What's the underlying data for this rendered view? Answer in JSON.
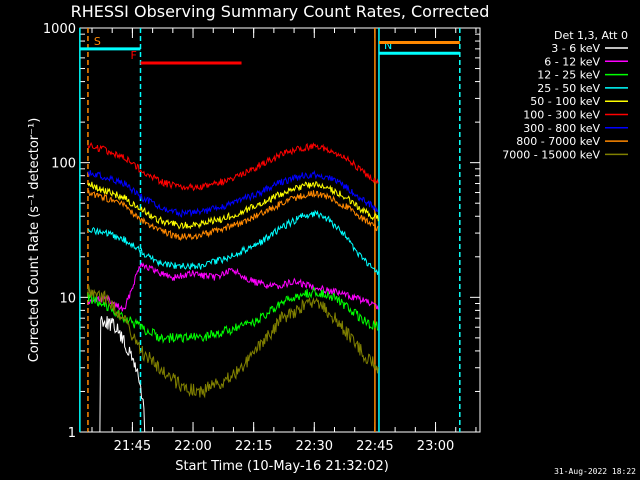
{
  "chart_data": {
    "type": "line",
    "title": "RHESSI Observing Summary Count Rates, Corrected",
    "xlabel": "Start Time (10-May-16 21:32:02)",
    "ylabel": "Corrected Count Rate (s⁻¹ detector⁻¹)",
    "x_ticks": [
      "21:45",
      "22:00",
      "22:15",
      "22:30",
      "22:45",
      "23:00"
    ],
    "y_ticks": [
      "1",
      "10",
      "100",
      "1000"
    ],
    "y_scale": "log",
    "ylim": [
      1,
      1000
    ],
    "xlim": [
      "21:32:02",
      "23:11:00"
    ],
    "legend_header": "Det 1,3, Att 0",
    "legend_position": "right, outside plot",
    "footer": "31-Aug-2022 18:22",
    "series": [
      {
        "name": "3 - 6 keV",
        "color": "#ffffff",
        "points": [
          [
            "21:34",
            0
          ],
          [
            "21:37",
            7
          ],
          [
            "21:41",
            6
          ],
          [
            "21:44",
            4
          ],
          [
            "21:46",
            3
          ],
          [
            "21:48",
            1.5
          ],
          [
            "21:50",
            0
          ],
          [
            "21:58",
            0
          ],
          [
            "22:05",
            0
          ],
          [
            "22:10",
            0
          ],
          [
            "22:15",
            0
          ]
        ]
      },
      {
        "name": "6 - 12 keV",
        "color": "#ff00ff",
        "points": [
          [
            "21:34",
            9
          ],
          [
            "21:38",
            10
          ],
          [
            "21:43",
            8
          ],
          [
            "21:47",
            18
          ],
          [
            "21:50",
            16
          ],
          [
            "21:55",
            14
          ],
          [
            "22:00",
            15
          ],
          [
            "22:05",
            14
          ],
          [
            "22:10",
            16
          ],
          [
            "22:15",
            13
          ],
          [
            "22:20",
            12
          ],
          [
            "22:25",
            13
          ],
          [
            "22:30",
            12
          ],
          [
            "22:35",
            11
          ],
          [
            "22:40",
            10
          ],
          [
            "22:44",
            9
          ],
          [
            "22:46",
            8
          ]
        ]
      },
      {
        "name": "12 - 25 keV",
        "color": "#00ff00",
        "points": [
          [
            "21:34",
            10
          ],
          [
            "21:38",
            9
          ],
          [
            "21:43",
            7
          ],
          [
            "21:47",
            6
          ],
          [
            "21:52",
            5
          ],
          [
            "21:57",
            5
          ],
          [
            "22:02",
            5
          ],
          [
            "22:07",
            5.5
          ],
          [
            "22:12",
            6
          ],
          [
            "22:17",
            7
          ],
          [
            "22:22",
            9
          ],
          [
            "22:27",
            10.5
          ],
          [
            "22:31",
            11
          ],
          [
            "22:35",
            10
          ],
          [
            "22:39",
            8
          ],
          [
            "22:43",
            6.5
          ],
          [
            "22:46",
            6
          ]
        ]
      },
      {
        "name": "25 - 50 keV",
        "color": "#00ffff",
        "points": [
          [
            "21:34",
            32
          ],
          [
            "21:38",
            30
          ],
          [
            "21:43",
            27
          ],
          [
            "21:47",
            22
          ],
          [
            "21:52",
            18
          ],
          [
            "21:57",
            17
          ],
          [
            "22:02",
            17
          ],
          [
            "22:07",
            19
          ],
          [
            "22:12",
            22
          ],
          [
            "22:17",
            26
          ],
          [
            "22:22",
            33
          ],
          [
            "22:27",
            40
          ],
          [
            "22:30",
            42
          ],
          [
            "22:34",
            37
          ],
          [
            "22:38",
            28
          ],
          [
            "22:42",
            19
          ],
          [
            "22:46",
            15
          ]
        ]
      },
      {
        "name": "50 - 100 keV",
        "color": "#ffff00",
        "points": [
          [
            "21:34",
            70
          ],
          [
            "21:38",
            62
          ],
          [
            "21:43",
            55
          ],
          [
            "21:47",
            45
          ],
          [
            "21:52",
            37
          ],
          [
            "21:57",
            34
          ],
          [
            "22:02",
            35
          ],
          [
            "22:07",
            38
          ],
          [
            "22:12",
            43
          ],
          [
            "22:17",
            50
          ],
          [
            "22:22",
            59
          ],
          [
            "22:27",
            67
          ],
          [
            "22:30",
            69
          ],
          [
            "22:34",
            64
          ],
          [
            "22:38",
            55
          ],
          [
            "22:42",
            44
          ],
          [
            "22:46",
            38
          ]
        ]
      },
      {
        "name": "100 - 300 keV",
        "color": "#ff0000",
        "points": [
          [
            "21:34",
            135
          ],
          [
            "21:38",
            125
          ],
          [
            "21:43",
            110
          ],
          [
            "21:47",
            88
          ],
          [
            "21:52",
            72
          ],
          [
            "21:57",
            65
          ],
          [
            "22:02",
            66
          ],
          [
            "22:07",
            72
          ],
          [
            "22:12",
            82
          ],
          [
            "22:17",
            97
          ],
          [
            "22:22",
            115
          ],
          [
            "22:27",
            128
          ],
          [
            "22:30",
            133
          ],
          [
            "22:34",
            125
          ],
          [
            "22:38",
            107
          ],
          [
            "22:42",
            85
          ],
          [
            "22:46",
            70
          ]
        ]
      },
      {
        "name": "300 - 800 keV",
        "color": "#0000ff",
        "points": [
          [
            "21:34",
            85
          ],
          [
            "21:38",
            78
          ],
          [
            "21:43",
            70
          ],
          [
            "21:47",
            56
          ],
          [
            "21:52",
            46
          ],
          [
            "21:57",
            42
          ],
          [
            "22:02",
            43
          ],
          [
            "22:07",
            47
          ],
          [
            "22:12",
            53
          ],
          [
            "22:17",
            61
          ],
          [
            "22:22",
            72
          ],
          [
            "22:27",
            80
          ],
          [
            "22:30",
            82
          ],
          [
            "22:34",
            77
          ],
          [
            "22:38",
            66
          ],
          [
            "22:42",
            53
          ],
          [
            "22:46",
            44
          ]
        ]
      },
      {
        "name": "800 - 7000 keV",
        "color": "#ff8800",
        "points": [
          [
            "21:34",
            60
          ],
          [
            "21:38",
            55
          ],
          [
            "21:43",
            48
          ],
          [
            "21:47",
            38
          ],
          [
            "21:52",
            31
          ],
          [
            "21:57",
            28
          ],
          [
            "22:02",
            29
          ],
          [
            "22:07",
            32
          ],
          [
            "22:12",
            36
          ],
          [
            "22:17",
            42
          ],
          [
            "22:22",
            50
          ],
          [
            "22:27",
            57
          ],
          [
            "22:30",
            59
          ],
          [
            "22:34",
            55
          ],
          [
            "22:38",
            47
          ],
          [
            "22:42",
            38
          ],
          [
            "22:46",
            32
          ]
        ]
      },
      {
        "name": "7000 - 15000 keV",
        "color": "#808000",
        "points": [
          [
            "21:34",
            11
          ],
          [
            "21:38",
            10
          ],
          [
            "21:43",
            7
          ],
          [
            "21:47",
            4
          ],
          [
            "21:52",
            3
          ],
          [
            "21:57",
            2.2
          ],
          [
            "22:02",
            2
          ],
          [
            "22:07",
            2.3
          ],
          [
            "22:12",
            3
          ],
          [
            "22:17",
            4.5
          ],
          [
            "22:22",
            7
          ],
          [
            "22:27",
            8.5
          ],
          [
            "22:31",
            9
          ],
          [
            "22:35",
            7
          ],
          [
            "22:39",
            5
          ],
          [
            "22:43",
            3.5
          ],
          [
            "22:46",
            3
          ]
        ]
      }
    ],
    "flag_bars": [
      {
        "label": "S",
        "label_color": "#ff8800",
        "color": "#00ffff",
        "x_start": "21:32",
        "x_end": "21:47",
        "level": 700
      },
      {
        "label": "N",
        "label_color": "#00ffff",
        "color": "#00ffff",
        "x_start": "22:46",
        "x_end": "23:06",
        "level": 650
      },
      {
        "label": "F",
        "label_color": "#ff0000",
        "color": "#ff0000",
        "x_start": "21:47",
        "x_end": "22:12",
        "level": 550
      },
      {
        "label": "",
        "label_color": "#ff8800",
        "color": "#ff8800",
        "x_start": "22:46",
        "x_end": "23:06",
        "level": 780
      }
    ],
    "vlines": [
      {
        "x": "21:34",
        "color": "#ff8800",
        "style": "dashed"
      },
      {
        "x": "21:32",
        "color": "#00ffff",
        "style": "solid"
      },
      {
        "x": "21:47",
        "color": "#00ffff",
        "style": "dashed"
      },
      {
        "x": "22:45",
        "color": "#ff8800",
        "style": "solid"
      },
      {
        "x": "22:46",
        "color": "#00ffff",
        "style": "solid"
      },
      {
        "x": "23:06",
        "color": "#ff8800",
        "style": "dashed"
      },
      {
        "x": "23:06",
        "color": "#00ffff",
        "style": "dashed"
      }
    ]
  }
}
